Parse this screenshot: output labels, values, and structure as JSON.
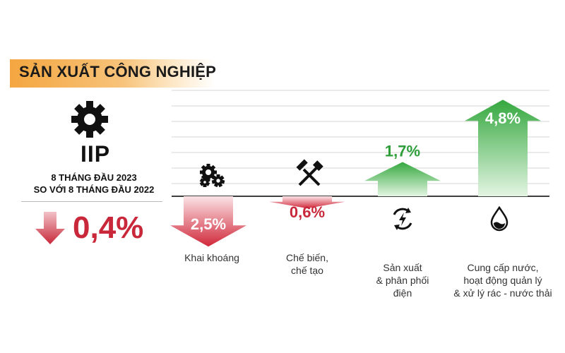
{
  "header": {
    "title": "SẢN XUẤT CÔNG NGHIỆP"
  },
  "summary": {
    "title": "IIP",
    "line1": "8 THÁNG ĐẦU 2023",
    "line2": "SO VỚI 8 THÁNG ĐẦU 2022",
    "value_label": "0,4%",
    "direction": "down"
  },
  "colors": {
    "negative": "#c8283a",
    "positive": "#2e9e3a",
    "header": "#f4a640"
  },
  "chart_data": {
    "type": "bar",
    "categories": [
      "Khai khoáng",
      "Chế biến, chế tạo",
      "Sản xuất & phân phối điện",
      "Cung cấp nước, hoạt động quản lý & xử lý rác - nước thải"
    ],
    "category_lines": [
      [
        "Khai khoáng"
      ],
      [
        "Chế biến,",
        "chế tạo"
      ],
      [
        "Sản xuất",
        "& phân phối",
        "điện"
      ],
      [
        "Cung cấp nước,",
        "hoạt động quản lý",
        "& xử lý rác - nước thải"
      ]
    ],
    "values": [
      -2.5,
      -0.6,
      1.7,
      4.8
    ],
    "value_labels": [
      "2,5%",
      "0,6%",
      "1,7%",
      "4,8%"
    ],
    "icons": [
      "gears-icon",
      "tools-icon",
      "power-icon",
      "water-drop-icon"
    ],
    "grid": true
  }
}
